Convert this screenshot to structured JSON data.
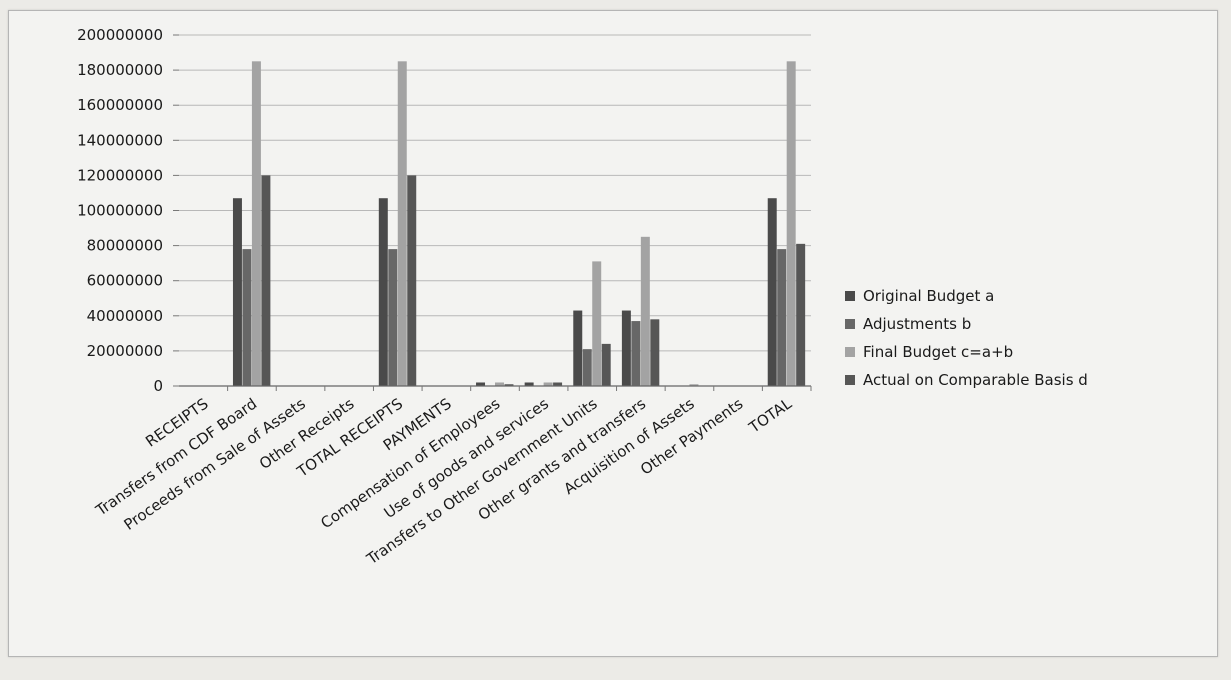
{
  "chart_data": {
    "type": "bar",
    "categories": [
      "RECEIPTS",
      "Transfers from CDF Board",
      "Proceeds from Sale of Assets",
      "Other Receipts",
      "TOTAL RECEIPTS",
      "PAYMENTS",
      "Compensation of Employees",
      "Use of goods and services",
      "Transfers to Other Government Units",
      "Other grants and transfers",
      "Acquisition of Assets",
      "Other Payments",
      "TOTAL"
    ],
    "series": [
      {
        "name": "Original Budget   a",
        "color": "#4a4a4a",
        "values": [
          0,
          107000000,
          0,
          0,
          107000000,
          0,
          2000000,
          2000000,
          43000000,
          43000000,
          0,
          0,
          107000000
        ]
      },
      {
        "name": "Adjustments   b",
        "color": "#676767",
        "values": [
          0,
          78000000,
          0,
          0,
          78000000,
          0,
          0,
          0,
          21000000,
          37000000,
          0,
          0,
          78000000
        ]
      },
      {
        "name": "Final Budget   c=a+b",
        "color": "#a3a3a3",
        "values": [
          0,
          185000000,
          0,
          0,
          185000000,
          0,
          2000000,
          2000000,
          71000000,
          85000000,
          1000000,
          0,
          185000000
        ]
      },
      {
        "name": "Actual on Comparable Basis   d",
        "color": "#565656",
        "values": [
          0,
          120000000,
          0,
          0,
          120000000,
          0,
          1000000,
          2000000,
          24000000,
          38000000,
          0,
          0,
          81000000
        ]
      }
    ],
    "ylim": [
      0,
      200000000
    ],
    "yticks": [
      "0",
      "20000000",
      "40000000",
      "60000000",
      "80000000",
      "100000000",
      "120000000",
      "140000000",
      "160000000",
      "180000000",
      "200000000"
    ],
    "grid": true,
    "legend_position": "right",
    "title": "",
    "xlabel": "",
    "ylabel": ""
  }
}
